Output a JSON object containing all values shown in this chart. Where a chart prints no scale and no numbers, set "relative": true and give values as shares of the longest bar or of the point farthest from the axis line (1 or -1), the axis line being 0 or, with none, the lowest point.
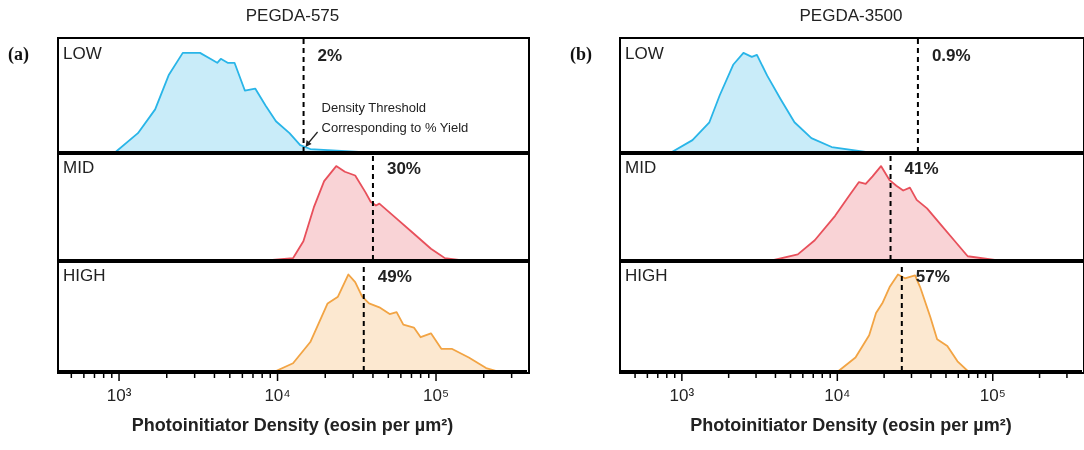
{
  "chart_data": [
    {
      "type": "area",
      "title": "PEGDA-575",
      "annotations": [
        "(a)",
        "LOW",
        {
          "text": "Density Threshold\nCorresponding to % Yield",
          "x": 14600,
          "y": 0
        },
        {
          "text": "2%",
          "x": 14600,
          "y": 1
        }
      ],
      "relative": true,
      "log": "x",
      "xlim": [
        412,
        375000
      ],
      "tick_labels": false,
      "color": "#29b5e8",
      "x": [
        951,
        1316,
        1690,
        2064,
        2524,
        3243,
        3767,
        4165,
        4386,
        4844,
        5353,
        6220,
        7230,
        8400,
        9770,
        11900,
        13900,
        16100,
        32500
      ],
      "values": [
        0,
        0.19,
        0.43,
        0.78,
        1.0,
        1.0,
        0.94,
        0.9,
        0.94,
        0.9,
        0.9,
        0.62,
        0.64,
        0.47,
        0.31,
        0.19,
        0.07,
        0.03,
        0
      ],
      "ref_lines": [
        {
          "axis": "x",
          "value": 14600,
          "line_style": "dashed",
          "color": "#000000"
        }
      ]
    },
    {
      "type": "area",
      "annotations": [
        "MID",
        {
          "text": "30%",
          "x": 40000,
          "y": 1
        }
      ],
      "relative": true,
      "log": "x",
      "xlim": [
        412,
        375000
      ],
      "tick_labels": false,
      "color": "#e8505b",
      "x": [
        9290,
        12530,
        14560,
        16940,
        19680,
        23460,
        26600,
        30900,
        35900,
        38700,
        41800,
        43900,
        56400,
        72500,
        92900,
        113700,
        139000
      ],
      "values": [
        0,
        0.02,
        0.2,
        0.56,
        0.84,
        1.0,
        0.94,
        0.9,
        0.72,
        0.62,
        0.58,
        0.6,
        0.44,
        0.28,
        0.12,
        0.02,
        0
      ],
      "ref_lines": [
        {
          "axis": "x",
          "value": 40000,
          "line_style": "dashed",
          "color": "#000000"
        }
      ]
    },
    {
      "type": "area",
      "annotations": [
        "HIGH",
        {
          "text": "49%",
          "x": 35000,
          "y": 1
        }
      ],
      "relative": true,
      "log": "x",
      "xlim": [
        412,
        375000
      ],
      "tick_labels": "x",
      "color": "#f2a444",
      "xlabel": "Photoinitiator Density (eosin per µm²)",
      "xticks": [
        {
          "value": 500,
          "label": null
        },
        {
          "value": 600,
          "label": null
        },
        {
          "value": 700,
          "label": null
        },
        {
          "value": 800,
          "label": null
        },
        {
          "value": 900,
          "label": null
        },
        {
          "value": 1000,
          "label": "10³"
        },
        {
          "value": 2000,
          "label": null
        },
        {
          "value": 3000,
          "label": null
        },
        {
          "value": 4000,
          "label": null
        },
        {
          "value": 5000,
          "label": null
        },
        {
          "value": 6000,
          "label": null
        },
        {
          "value": 7000,
          "label": null
        },
        {
          "value": 8000,
          "label": null
        },
        {
          "value": 9000,
          "label": null
        },
        {
          "value": 10000,
          "label": "10⁴"
        },
        {
          "value": 20000,
          "label": null
        },
        {
          "value": 30000,
          "label": null
        },
        {
          "value": 40000,
          "label": null
        },
        {
          "value": 50000,
          "label": null
        },
        {
          "value": 60000,
          "label": null
        },
        {
          "value": 70000,
          "label": null
        },
        {
          "value": 80000,
          "label": null
        },
        {
          "value": 90000,
          "label": null
        },
        {
          "value": 100000,
          "label": "10⁵"
        },
        {
          "value": 200000,
          "label": null
        },
        {
          "value": 300000,
          "label": null
        }
      ],
      "x": [
        9770,
        12530,
        16100,
        20700,
        24050,
        28000,
        30900,
        34200,
        37800,
        43900,
        51000,
        56400,
        62200,
        72500,
        80000,
        92900,
        108000,
        125600,
        161000,
        207000,
        241000
      ],
      "values": [
        0,
        0.08,
        0.3,
        0.7,
        0.77,
        1.0,
        0.92,
        0.77,
        0.7,
        0.66,
        0.59,
        0.61,
        0.48,
        0.45,
        0.35,
        0.39,
        0.23,
        0.23,
        0.14,
        0.03,
        0
      ],
      "ref_lines": [
        {
          "axis": "x",
          "value": 35000,
          "line_style": "dashed",
          "color": "#000000"
        }
      ]
    },
    {
      "type": "area",
      "title": "PEGDA-3500",
      "annotations": [
        "(b)",
        "LOW",
        {
          "text": "0.9%",
          "x": 33000,
          "y": 1
        }
      ],
      "relative": true,
      "log": "x",
      "xlim": [
        400,
        375000
      ],
      "tick_labels": false,
      "color": "#29b5e8",
      "x": [
        863,
        1170,
        1503,
        1750,
        2138,
        2490,
        2818,
        3040,
        3540,
        4330,
        5300,
        6810,
        9200,
        15200
      ],
      "values": [
        0,
        0.12,
        0.3,
        0.57,
        0.88,
        1.0,
        0.96,
        0.98,
        0.77,
        0.53,
        0.3,
        0.14,
        0.05,
        0
      ],
      "ref_lines": [
        {
          "axis": "x",
          "value": 33000,
          "line_style": "dashed",
          "color": "#000000"
        }
      ]
    },
    {
      "type": "area",
      "annotations": [
        "MID",
        {
          "text": "41%",
          "x": 22000,
          "y": 1
        }
      ],
      "relative": true,
      "log": "x",
      "xlim": [
        400,
        375000
      ],
      "tick_labels": false,
      "color": "#e8505b",
      "x": [
        3920,
        5570,
        7160,
        9680,
        11850,
        13780,
        15230,
        16850,
        19100,
        21700,
        23970,
        26540,
        29310,
        32400,
        37760,
        46150,
        56380,
        68990,
        103000
      ],
      "values": [
        0,
        0.06,
        0.21,
        0.47,
        0.68,
        0.83,
        0.81,
        0.89,
        1.0,
        0.85,
        0.79,
        0.74,
        0.77,
        0.64,
        0.55,
        0.38,
        0.21,
        0.04,
        0
      ],
      "ref_lines": [
        {
          "axis": "x",
          "value": 22000,
          "line_style": "dashed",
          "color": "#000000"
        }
      ]
    },
    {
      "type": "area",
      "annotations": [
        "HIGH",
        {
          "text": "57%",
          "x": 26000,
          "y": 1
        }
      ],
      "relative": true,
      "log": "x",
      "xlim": [
        400,
        375000
      ],
      "tick_labels": "x",
      "color": "#f2a444",
      "xlabel": "Photoinitiator Density (eosin per µm²)",
      "xticks": [
        {
          "value": 500,
          "label": null
        },
        {
          "value": 600,
          "label": null
        },
        {
          "value": 700,
          "label": null
        },
        {
          "value": 800,
          "label": null
        },
        {
          "value": 900,
          "label": null
        },
        {
          "value": 1000,
          "label": "10³"
        },
        {
          "value": 2000,
          "label": null
        },
        {
          "value": 3000,
          "label": null
        },
        {
          "value": 4000,
          "label": null
        },
        {
          "value": 5000,
          "label": null
        },
        {
          "value": 6000,
          "label": null
        },
        {
          "value": 7000,
          "label": null
        },
        {
          "value": 8000,
          "label": null
        },
        {
          "value": 9000,
          "label": null
        },
        {
          "value": 10000,
          "label": "10⁴"
        },
        {
          "value": 20000,
          "label": null
        },
        {
          "value": 30000,
          "label": null
        },
        {
          "value": 40000,
          "label": null
        },
        {
          "value": 50000,
          "label": null
        },
        {
          "value": 60000,
          "label": null
        },
        {
          "value": 70000,
          "label": null
        },
        {
          "value": 80000,
          "label": null
        },
        {
          "value": 90000,
          "label": null
        },
        {
          "value": 100000,
          "label": "10⁵"
        },
        {
          "value": 200000,
          "label": null
        },
        {
          "value": 300000,
          "label": null
        }
      ],
      "x": [
        10190,
        13090,
        16030,
        17750,
        19610,
        21700,
        24560,
        27210,
        31620,
        34100,
        39650,
        43850,
        51000,
        59300,
        69000
      ],
      "values": [
        0,
        0.14,
        0.37,
        0.6,
        0.71,
        0.87,
        1.0,
        0.96,
        0.99,
        0.87,
        0.56,
        0.33,
        0.26,
        0.1,
        0
      ],
      "ref_lines": [
        {
          "axis": "x",
          "value": 26000,
          "line_style": "dashed",
          "color": "#000000"
        }
      ]
    }
  ]
}
